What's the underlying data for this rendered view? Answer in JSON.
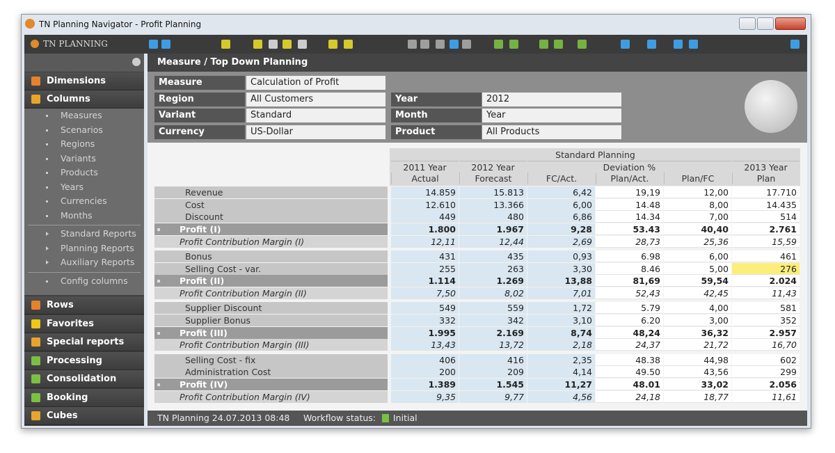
{
  "window": {
    "title": "TN Planning Navigator - Profit Planning"
  },
  "toolbar": {
    "app": "TN PLANNING"
  },
  "sidebar": {
    "dimensions": "Dimensions",
    "columns": "Columns",
    "column_items": [
      "Measures",
      "Scenarios",
      "Regions",
      "Variants",
      "Products",
      "Years",
      "Currencies",
      "Months"
    ],
    "reports": [
      "Standard Reports",
      "Planning Reports",
      "Auxiliary Reports"
    ],
    "config": "Config columns",
    "sections": [
      "Rows",
      "Favorites",
      "Special reports",
      "Processing",
      "Consolidation",
      "Booking",
      "Cubes"
    ]
  },
  "content": {
    "heading": "Measure / Top Down Planning",
    "filters_left": [
      {
        "label": "Measure",
        "value": "Calculation of Profit"
      },
      {
        "label": "Region",
        "value": "All Customers"
      },
      {
        "label": "Variant",
        "value": "Standard"
      },
      {
        "label": "Currency",
        "value": "US-Dollar"
      }
    ],
    "filters_right": [
      {
        "label": "Year",
        "value": "2012"
      },
      {
        "label": "Month",
        "value": "Year"
      },
      {
        "label": "Product",
        "value": "All Products"
      }
    ]
  },
  "table": {
    "title": "Standard Planning",
    "years": [
      "2011 Year",
      "2012 Year",
      "Deviation %",
      "2013 Year"
    ],
    "measures": [
      "Actual",
      "Forecast",
      "FC/Act.",
      "Plan/Act.",
      "Plan/FC",
      "Plan"
    ],
    "groups": [
      [
        {
          "label": "Revenue",
          "values": [
            "14.859",
            "15.813",
            "6,42",
            "19,19",
            "12,00",
            "17.710"
          ]
        },
        {
          "label": "Cost",
          "values": [
            "12.610",
            "13.366",
            "6,00",
            "14.48",
            "8,00",
            "14.435"
          ]
        },
        {
          "label": "Discount",
          "values": [
            "449",
            "480",
            "6,86",
            "14.34",
            "7,00",
            "514"
          ]
        },
        {
          "label": "Profit (I)",
          "values": [
            "1.800",
            "1.967",
            "9,28",
            "53.43",
            "40,40",
            "2.761"
          ]
        },
        {
          "label": "Profit Contribution Margin (I)",
          "values": [
            "12,11",
            "12,44",
            "2,69",
            "28,73",
            "25,36",
            "15,59"
          ]
        }
      ],
      [
        {
          "label": "Bonus",
          "values": [
            "431",
            "435",
            "0,93",
            "6.98",
            "6,00",
            "461"
          ]
        },
        {
          "label": "Selling Cost - var.",
          "values": [
            "255",
            "263",
            "3,30",
            "8.46",
            "5,00",
            "276"
          ]
        },
        {
          "label": "Profit (II)",
          "values": [
            "1.114",
            "1.269",
            "13,88",
            "81,69",
            "59,54",
            "2.024"
          ]
        },
        {
          "label": "Profit Contribution Margin (II)",
          "values": [
            "7,50",
            "8,02",
            "7,01",
            "52,43",
            "42,45",
            "11,43"
          ]
        }
      ],
      [
        {
          "label": "Supplier Discount",
          "values": [
            "549",
            "559",
            "1,72",
            "5.79",
            "4,00",
            "581"
          ]
        },
        {
          "label": "Supplier Bonus",
          "values": [
            "332",
            "342",
            "3,10",
            "6.20",
            "3,00",
            "352"
          ]
        },
        {
          "label": "Profit (III)",
          "values": [
            "1.995",
            "2.169",
            "8,74",
            "48,24",
            "36,32",
            "2.957"
          ]
        },
        {
          "label": "Profit Contribution Margin (III)",
          "values": [
            "13,43",
            "13,72",
            "2,18",
            "24,37",
            "21,72",
            "16,70"
          ]
        }
      ],
      [
        {
          "label": "Selling Cost - fix",
          "values": [
            "406",
            "416",
            "2,35",
            "48.38",
            "44,98",
            "602"
          ]
        },
        {
          "label": "Administration Cost",
          "values": [
            "200",
            "209",
            "4,14",
            "49.50",
            "43,56",
            "299"
          ]
        },
        {
          "label": "Profit (IV)",
          "values": [
            "1.389",
            "1.545",
            "11,27",
            "48.01",
            "33,02",
            "2.056"
          ]
        },
        {
          "label": "Profit Contribution Margin (IV)",
          "values": [
            "9,35",
            "9,77",
            "4,56",
            "24,18",
            "18,77",
            "11,61"
          ]
        }
      ]
    ]
  },
  "status": {
    "text": "TN Planning 24.07.2013 08:48",
    "workflow_label": "Workflow status:",
    "workflow_value": "Initial"
  }
}
